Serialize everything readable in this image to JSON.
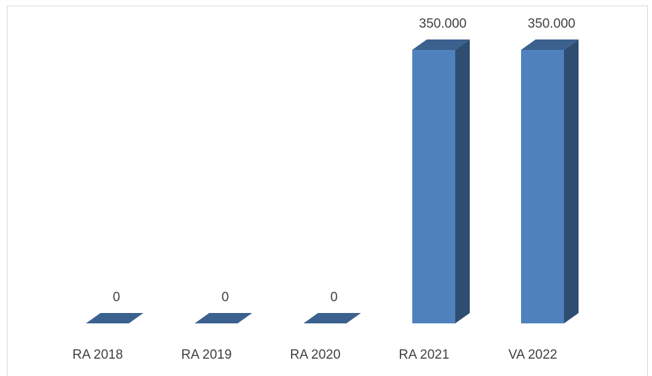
{
  "chart_data": {
    "type": "bar3d",
    "categories": [
      "RA 2018",
      "RA 2019",
      "RA 2020",
      "RA 2021",
      "VA 2022"
    ],
    "values": [
      0,
      0,
      0,
      350000,
      350000
    ],
    "value_labels": [
      "0",
      "0",
      "0",
      "350.000",
      "350.000"
    ],
    "color": "#4f81bd"
  }
}
